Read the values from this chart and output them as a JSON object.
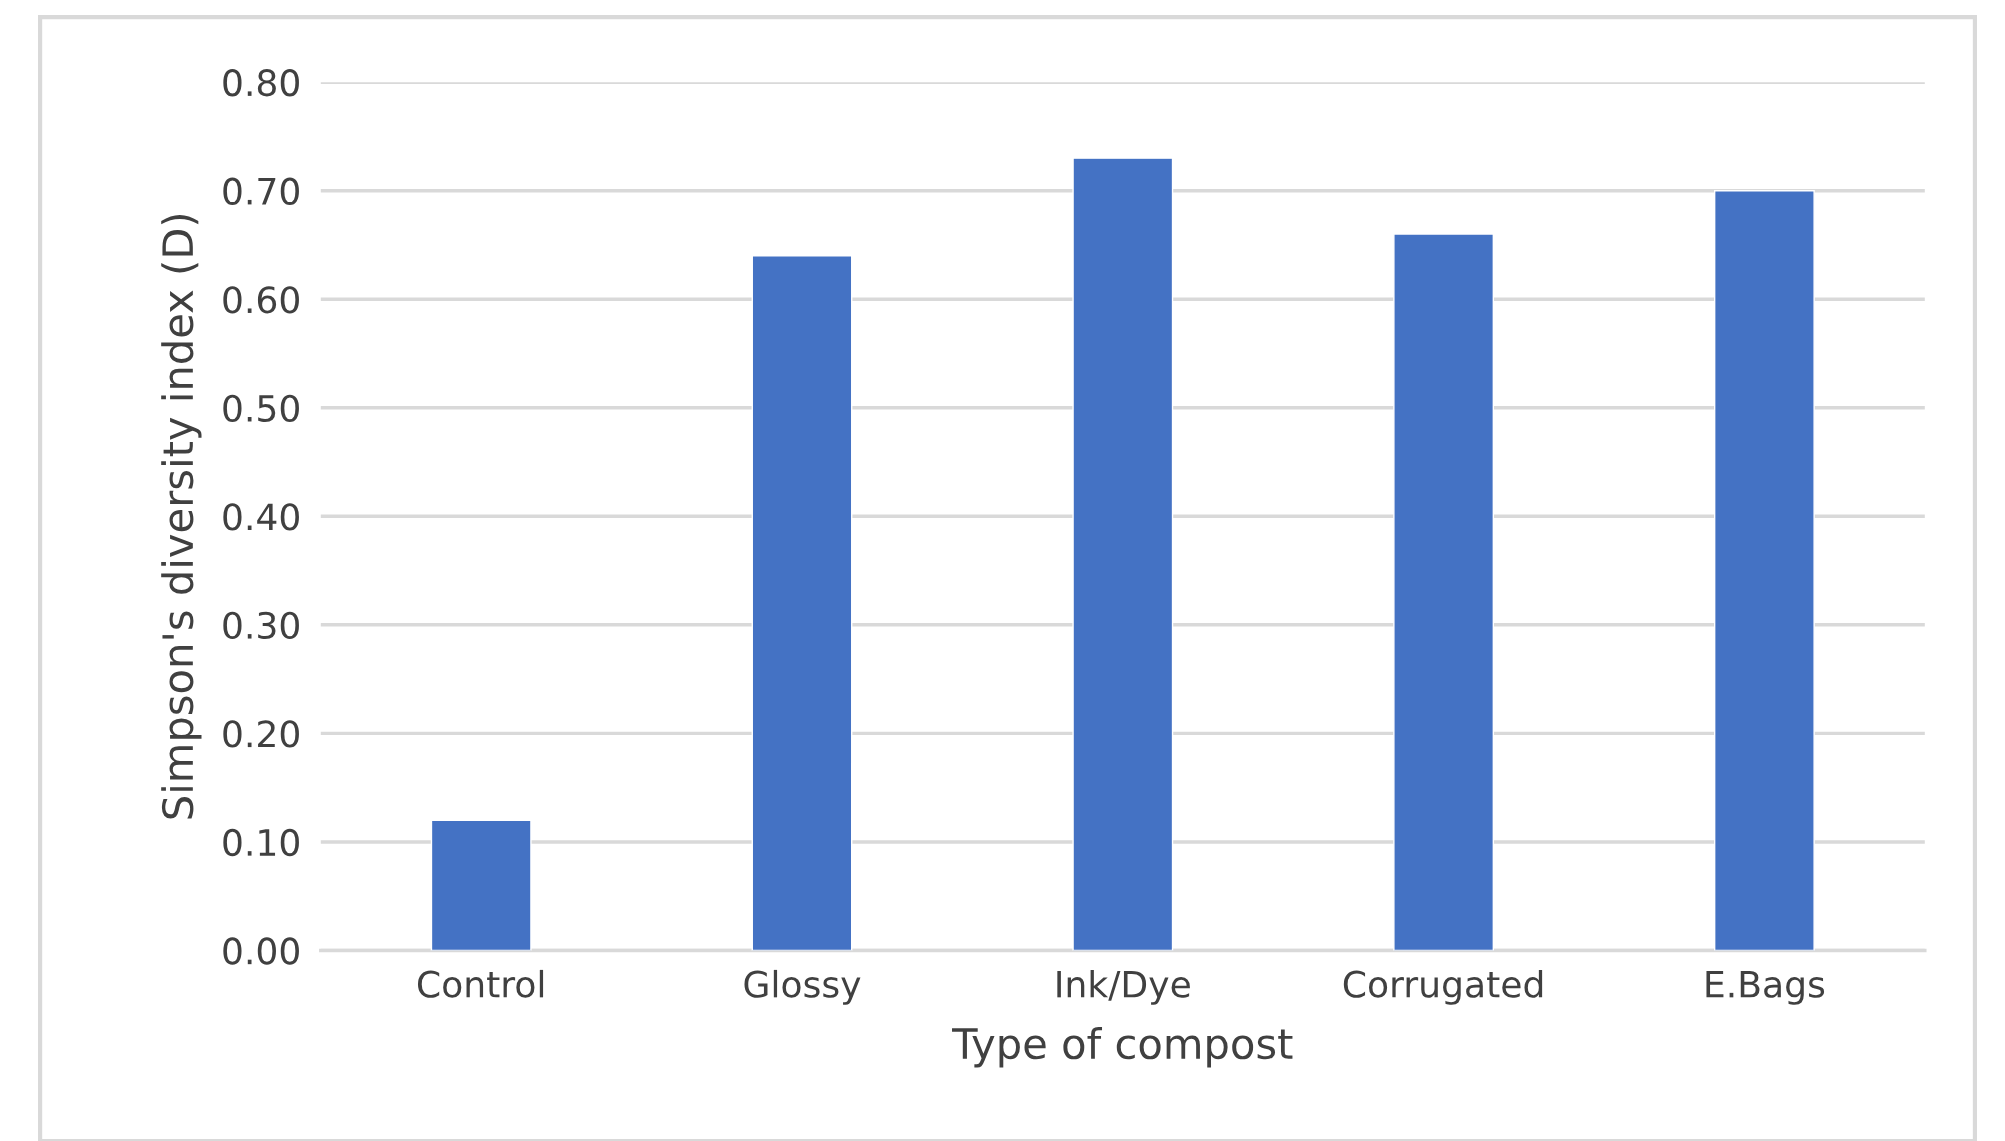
{
  "chart_data": {
    "type": "bar",
    "xlabel": "Type of compost",
    "ylabel": "Simpson's diversity index (D)",
    "categories": [
      "Control",
      "Glossy",
      "Ink/Dye",
      "Corrugated",
      "E.Bags"
    ],
    "values": [
      0.12,
      0.64,
      0.73,
      0.66,
      0.7
    ],
    "color": "#4472c4",
    "ylim": [
      0,
      0.8
    ],
    "yticks": [
      {
        "value": 0,
        "label": "0.00"
      },
      {
        "value": 0.1,
        "label": "0.10"
      },
      {
        "value": 0.2,
        "label": "0.20"
      },
      {
        "value": 0.3,
        "label": "0.30"
      },
      {
        "value": 0.4,
        "label": "0.40"
      },
      {
        "value": 0.5,
        "label": "0.50"
      },
      {
        "value": 0.6,
        "label": "0.60"
      },
      {
        "value": 0.7,
        "label": "0.70"
      },
      {
        "value": 0.8,
        "label": "0.80"
      }
    ],
    "grid": "y",
    "legend": false
  }
}
